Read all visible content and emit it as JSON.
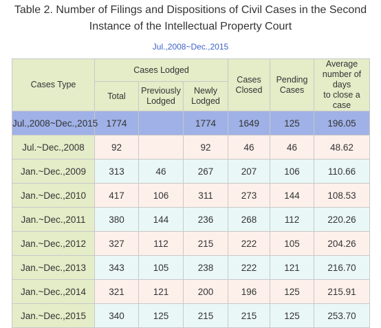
{
  "title_line1": "Table 2. Number of Filings and Dispositions of Civil Cases in the Second",
  "title_line2": "Instance of the Intellectual Property Court",
  "subtitle": "Jul.,2008~Dec.,2015",
  "headers": {
    "cases_type": "Cases Type",
    "cases_lodged": "Cases Lodged",
    "total": "Total",
    "previously_lodged_1": "Previously",
    "previously_lodged_2": "Lodged",
    "newly_lodged_1": "Newly",
    "newly_lodged_2": "Lodged",
    "cases_closed_1": "Cases",
    "cases_closed_2": "Closed",
    "pending_cases_1": "Pending",
    "pending_cases_2": "Cases",
    "average_1": "Average",
    "average_2": "number of days",
    "average_3": "to close a case"
  },
  "rows": [
    {
      "period": "Jul.,2008~Dec.,2015",
      "total": "1774",
      "previously": "",
      "newly": "1774",
      "closed": "1649",
      "pending": "125",
      "avg_days": "196.05"
    },
    {
      "period": "Jul.~Dec.,2008",
      "total": "92",
      "previously": "",
      "newly": "92",
      "closed": "46",
      "pending": "46",
      "avg_days": "48.62"
    },
    {
      "period": "Jan.~Dec.,2009",
      "total": "313",
      "previously": "46",
      "newly": "267",
      "closed": "207",
      "pending": "106",
      "avg_days": "110.66"
    },
    {
      "period": "Jan.~Dec.,2010",
      "total": "417",
      "previously": "106",
      "newly": "311",
      "closed": "273",
      "pending": "144",
      "avg_days": "108.53"
    },
    {
      "period": "Jan.~Dec.,2011",
      "total": "380",
      "previously": "144",
      "newly": "236",
      "closed": "268",
      "pending": "112",
      "avg_days": "220.26"
    },
    {
      "period": "Jan.~Dec.,2012",
      "total": "327",
      "previously": "112",
      "newly": "215",
      "closed": "222",
      "pending": "105",
      "avg_days": "204.26"
    },
    {
      "period": "Jan.~Dec.,2013",
      "total": "343",
      "previously": "105",
      "newly": "238",
      "closed": "222",
      "pending": "121",
      "avg_days": "216.70"
    },
    {
      "period": "Jan.~Dec.,2014",
      "total": "321",
      "previously": "121",
      "newly": "200",
      "closed": "196",
      "pending": "125",
      "avg_days": "215.91"
    },
    {
      "period": "Jan.~Dec.,2015",
      "total": "340",
      "previously": "125",
      "newly": "215",
      "closed": "215",
      "pending": "125",
      "avg_days": "253.70"
    }
  ],
  "colors": {
    "header_bg": "#e4ecc8",
    "total_row_bg": "#9fb1e6",
    "pink_row_bg": "#fdf0ea",
    "blue_row_bg": "#eaf7f7",
    "subtitle": "#3b5fc9"
  }
}
